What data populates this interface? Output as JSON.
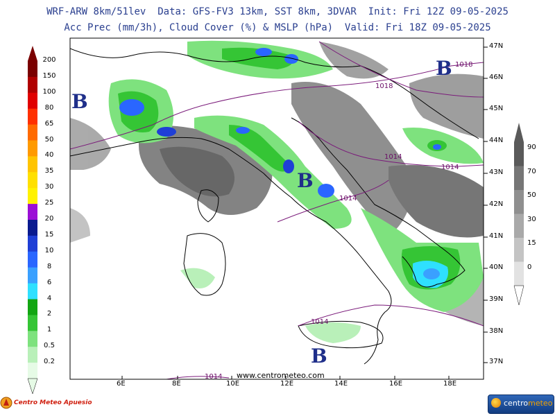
{
  "header": {
    "line1": "WRF-ARW 8km/51lev  Data: GFS-FV3 13km, SST 8km, 3DVAR  Init: Fri 12Z 09-05-2025",
    "line2": "Acc Prec (mm/3h), Cloud Cover (%) & MSLP (hPa)  Valid: Fri 18Z 09-05-2025"
  },
  "precip_scale": {
    "labels": [
      "200",
      "150",
      "100",
      "80",
      "65",
      "50",
      "40",
      "35",
      "30",
      "25",
      "20",
      "15",
      "10",
      "8",
      "6",
      "4",
      "2",
      "1",
      "0.5",
      "0.2"
    ],
    "colors": [
      "#7a0000",
      "#b00000",
      "#e00000",
      "#ff3000",
      "#ff6a00",
      "#ff9a00",
      "#ffc400",
      "#ffe000",
      "#fff200",
      "#9b0fd6",
      "#0a1a8f",
      "#1f3fd6",
      "#2a66ff",
      "#3aa0ff",
      "#2fe0ff",
      "#12a612",
      "#35c535",
      "#7ee27e",
      "#b9f0b9",
      "#e6fbe6"
    ]
  },
  "cloud_scale": {
    "labels": [
      "90",
      "70",
      "50",
      "30",
      "15",
      "0"
    ],
    "colors": [
      "#5a5a5a",
      "#767676",
      "#8f8f8f",
      "#a9a9a9",
      "#c4c4c4",
      "#e2e2e2"
    ]
  },
  "axes": {
    "lon_labels": [
      "6E",
      "8E",
      "10E",
      "12E",
      "14E",
      "16E",
      "18E"
    ],
    "lat_labels": [
      "47N",
      "46N",
      "45N",
      "44N",
      "43N",
      "42N",
      "41N",
      "40N",
      "39N",
      "38N",
      "37N"
    ]
  },
  "pressure_systems": [
    {
      "label": "B"
    },
    {
      "label": "B"
    },
    {
      "label": "B"
    },
    {
      "label": "B"
    }
  ],
  "isobars": [
    "1018",
    "1018",
    "1014",
    "1014",
    "1014",
    "1014",
    "1014"
  ],
  "watermark": "www.centrometeo.com",
  "logos": {
    "left": "Centro Meteo Apuesio",
    "right_a": "centro",
    "right_b": "meteo"
  }
}
